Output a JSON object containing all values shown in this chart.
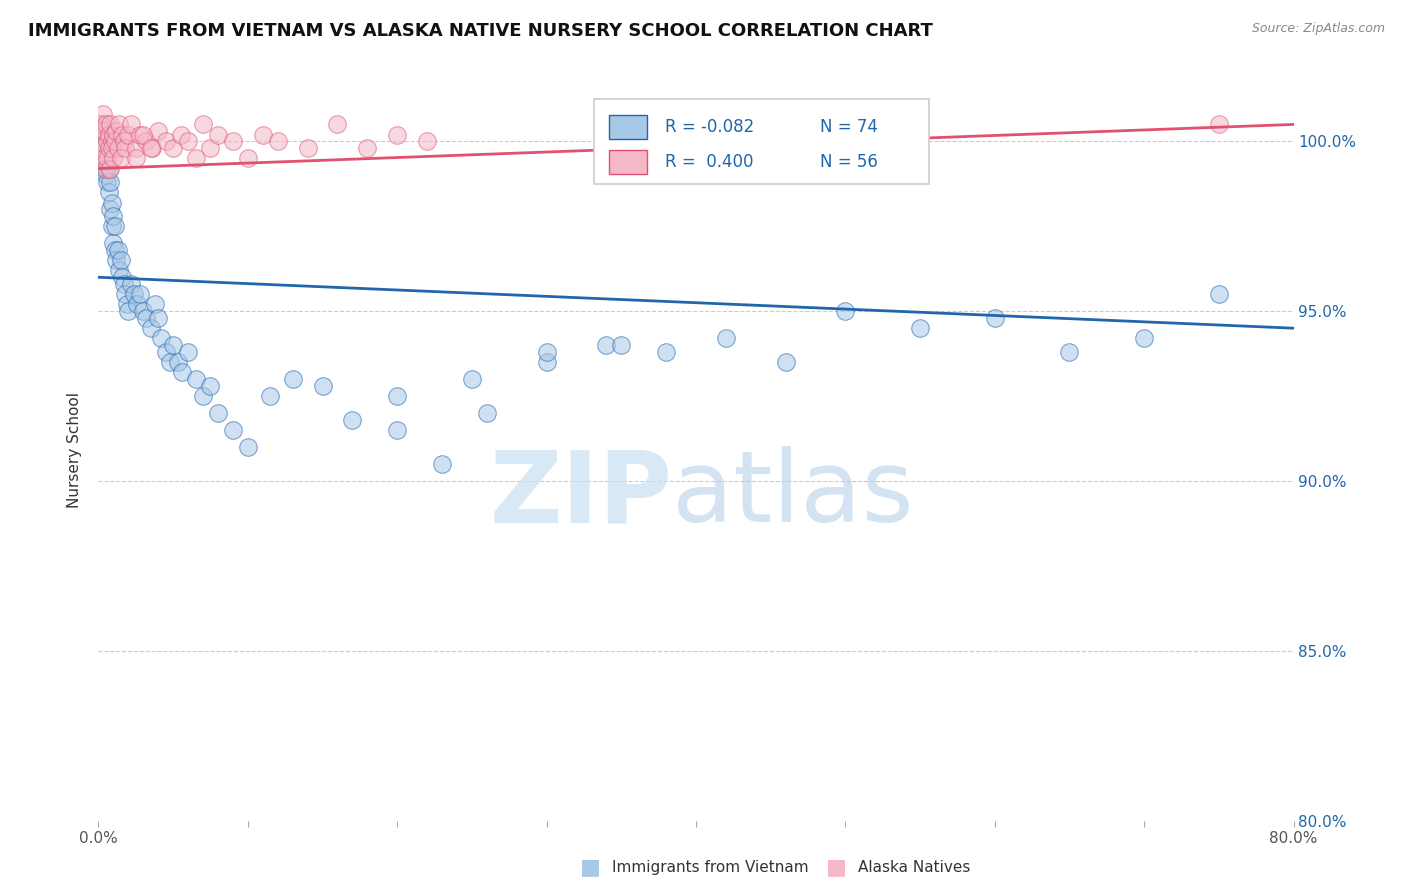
{
  "title": "IMMIGRANTS FROM VIETNAM VS ALASKA NATIVE NURSERY SCHOOL CORRELATION CHART",
  "source": "Source: ZipAtlas.com",
  "ylabel": "Nursery School",
  "x_min": 0.0,
  "x_max": 0.8,
  "y_min": 80.0,
  "y_max": 101.8,
  "y_ticks": [
    80.0,
    85.0,
    90.0,
    95.0,
    100.0
  ],
  "x_ticks": [
    0.0,
    0.1,
    0.2,
    0.3,
    0.4,
    0.5,
    0.6,
    0.7,
    0.8
  ],
  "x_tick_labels": [
    "0.0%",
    "",
    "",
    "",
    "",
    "",
    "",
    "",
    "80.0%"
  ],
  "y_tick_labels": [
    "80.0%",
    "85.0%",
    "90.0%",
    "95.0%",
    "100.0%"
  ],
  "legend_label1": "Immigrants from Vietnam",
  "legend_label2": "Alaska Natives",
  "R1": -0.082,
  "N1": 74,
  "R2": 0.4,
  "N2": 56,
  "color_blue": "#a8c8e8",
  "color_blue_fill": "#a8c8e8",
  "color_pink": "#f4b8c8",
  "color_pink_fill": "#f4b8c8",
  "color_blue_line": "#2166ac",
  "color_pink_line": "#e05070",
  "color_text_blue": "#2166ac",
  "color_text_dark": "#333333",
  "color_grid": "#cccccc",
  "blue_line_y0": 96.0,
  "blue_line_y1": 94.5,
  "pink_line_y0": 99.2,
  "pink_line_y1": 100.5,
  "blue_scatter_x": [
    0.001,
    0.002,
    0.002,
    0.003,
    0.003,
    0.004,
    0.004,
    0.005,
    0.005,
    0.006,
    0.006,
    0.007,
    0.007,
    0.008,
    0.008,
    0.009,
    0.009,
    0.01,
    0.01,
    0.011,
    0.011,
    0.012,
    0.013,
    0.014,
    0.015,
    0.016,
    0.017,
    0.018,
    0.019,
    0.02,
    0.022,
    0.024,
    0.026,
    0.028,
    0.03,
    0.032,
    0.035,
    0.038,
    0.04,
    0.042,
    0.045,
    0.048,
    0.05,
    0.053,
    0.056,
    0.06,
    0.065,
    0.07,
    0.075,
    0.08,
    0.09,
    0.1,
    0.115,
    0.13,
    0.15,
    0.17,
    0.2,
    0.23,
    0.26,
    0.3,
    0.34,
    0.38,
    0.42,
    0.46,
    0.5,
    0.55,
    0.6,
    0.65,
    0.7,
    0.75,
    0.2,
    0.25,
    0.3,
    0.35
  ],
  "blue_scatter_y": [
    100.2,
    99.8,
    100.5,
    99.5,
    100.0,
    99.2,
    100.3,
    99.0,
    100.2,
    98.8,
    99.5,
    98.5,
    99.2,
    98.0,
    98.8,
    97.5,
    98.2,
    97.0,
    97.8,
    96.8,
    97.5,
    96.5,
    96.8,
    96.2,
    96.5,
    96.0,
    95.8,
    95.5,
    95.2,
    95.0,
    95.8,
    95.5,
    95.2,
    95.5,
    95.0,
    94.8,
    94.5,
    95.2,
    94.8,
    94.2,
    93.8,
    93.5,
    94.0,
    93.5,
    93.2,
    93.8,
    93.0,
    92.5,
    92.8,
    92.0,
    91.5,
    91.0,
    92.5,
    93.0,
    92.8,
    91.8,
    91.5,
    90.5,
    92.0,
    93.5,
    94.0,
    93.8,
    94.2,
    93.5,
    95.0,
    94.5,
    94.8,
    93.8,
    94.2,
    95.5,
    92.5,
    93.0,
    93.8,
    94.0
  ],
  "pink_scatter_x": [
    0.001,
    0.001,
    0.002,
    0.002,
    0.003,
    0.003,
    0.004,
    0.004,
    0.005,
    0.005,
    0.006,
    0.006,
    0.007,
    0.007,
    0.008,
    0.008,
    0.009,
    0.009,
    0.01,
    0.01,
    0.011,
    0.012,
    0.013,
    0.014,
    0.015,
    0.016,
    0.017,
    0.018,
    0.02,
    0.022,
    0.025,
    0.028,
    0.032,
    0.036,
    0.04,
    0.045,
    0.05,
    0.055,
    0.06,
    0.065,
    0.07,
    0.075,
    0.08,
    0.09,
    0.1,
    0.11,
    0.12,
    0.14,
    0.16,
    0.18,
    0.2,
    0.22,
    0.025,
    0.03,
    0.035,
    0.75
  ],
  "pink_scatter_y": [
    100.2,
    99.8,
    100.5,
    99.5,
    100.8,
    99.8,
    100.3,
    99.5,
    100.5,
    99.2,
    100.0,
    99.5,
    100.2,
    99.8,
    100.5,
    99.2,
    100.0,
    99.8,
    100.2,
    99.5,
    100.0,
    100.3,
    99.8,
    100.5,
    99.5,
    100.2,
    100.0,
    99.8,
    100.2,
    100.5,
    99.8,
    100.2,
    100.0,
    99.8,
    100.3,
    100.0,
    99.8,
    100.2,
    100.0,
    99.5,
    100.5,
    99.8,
    100.2,
    100.0,
    99.5,
    100.2,
    100.0,
    99.8,
    100.5,
    99.8,
    100.2,
    100.0,
    99.5,
    100.2,
    99.8,
    100.5
  ]
}
